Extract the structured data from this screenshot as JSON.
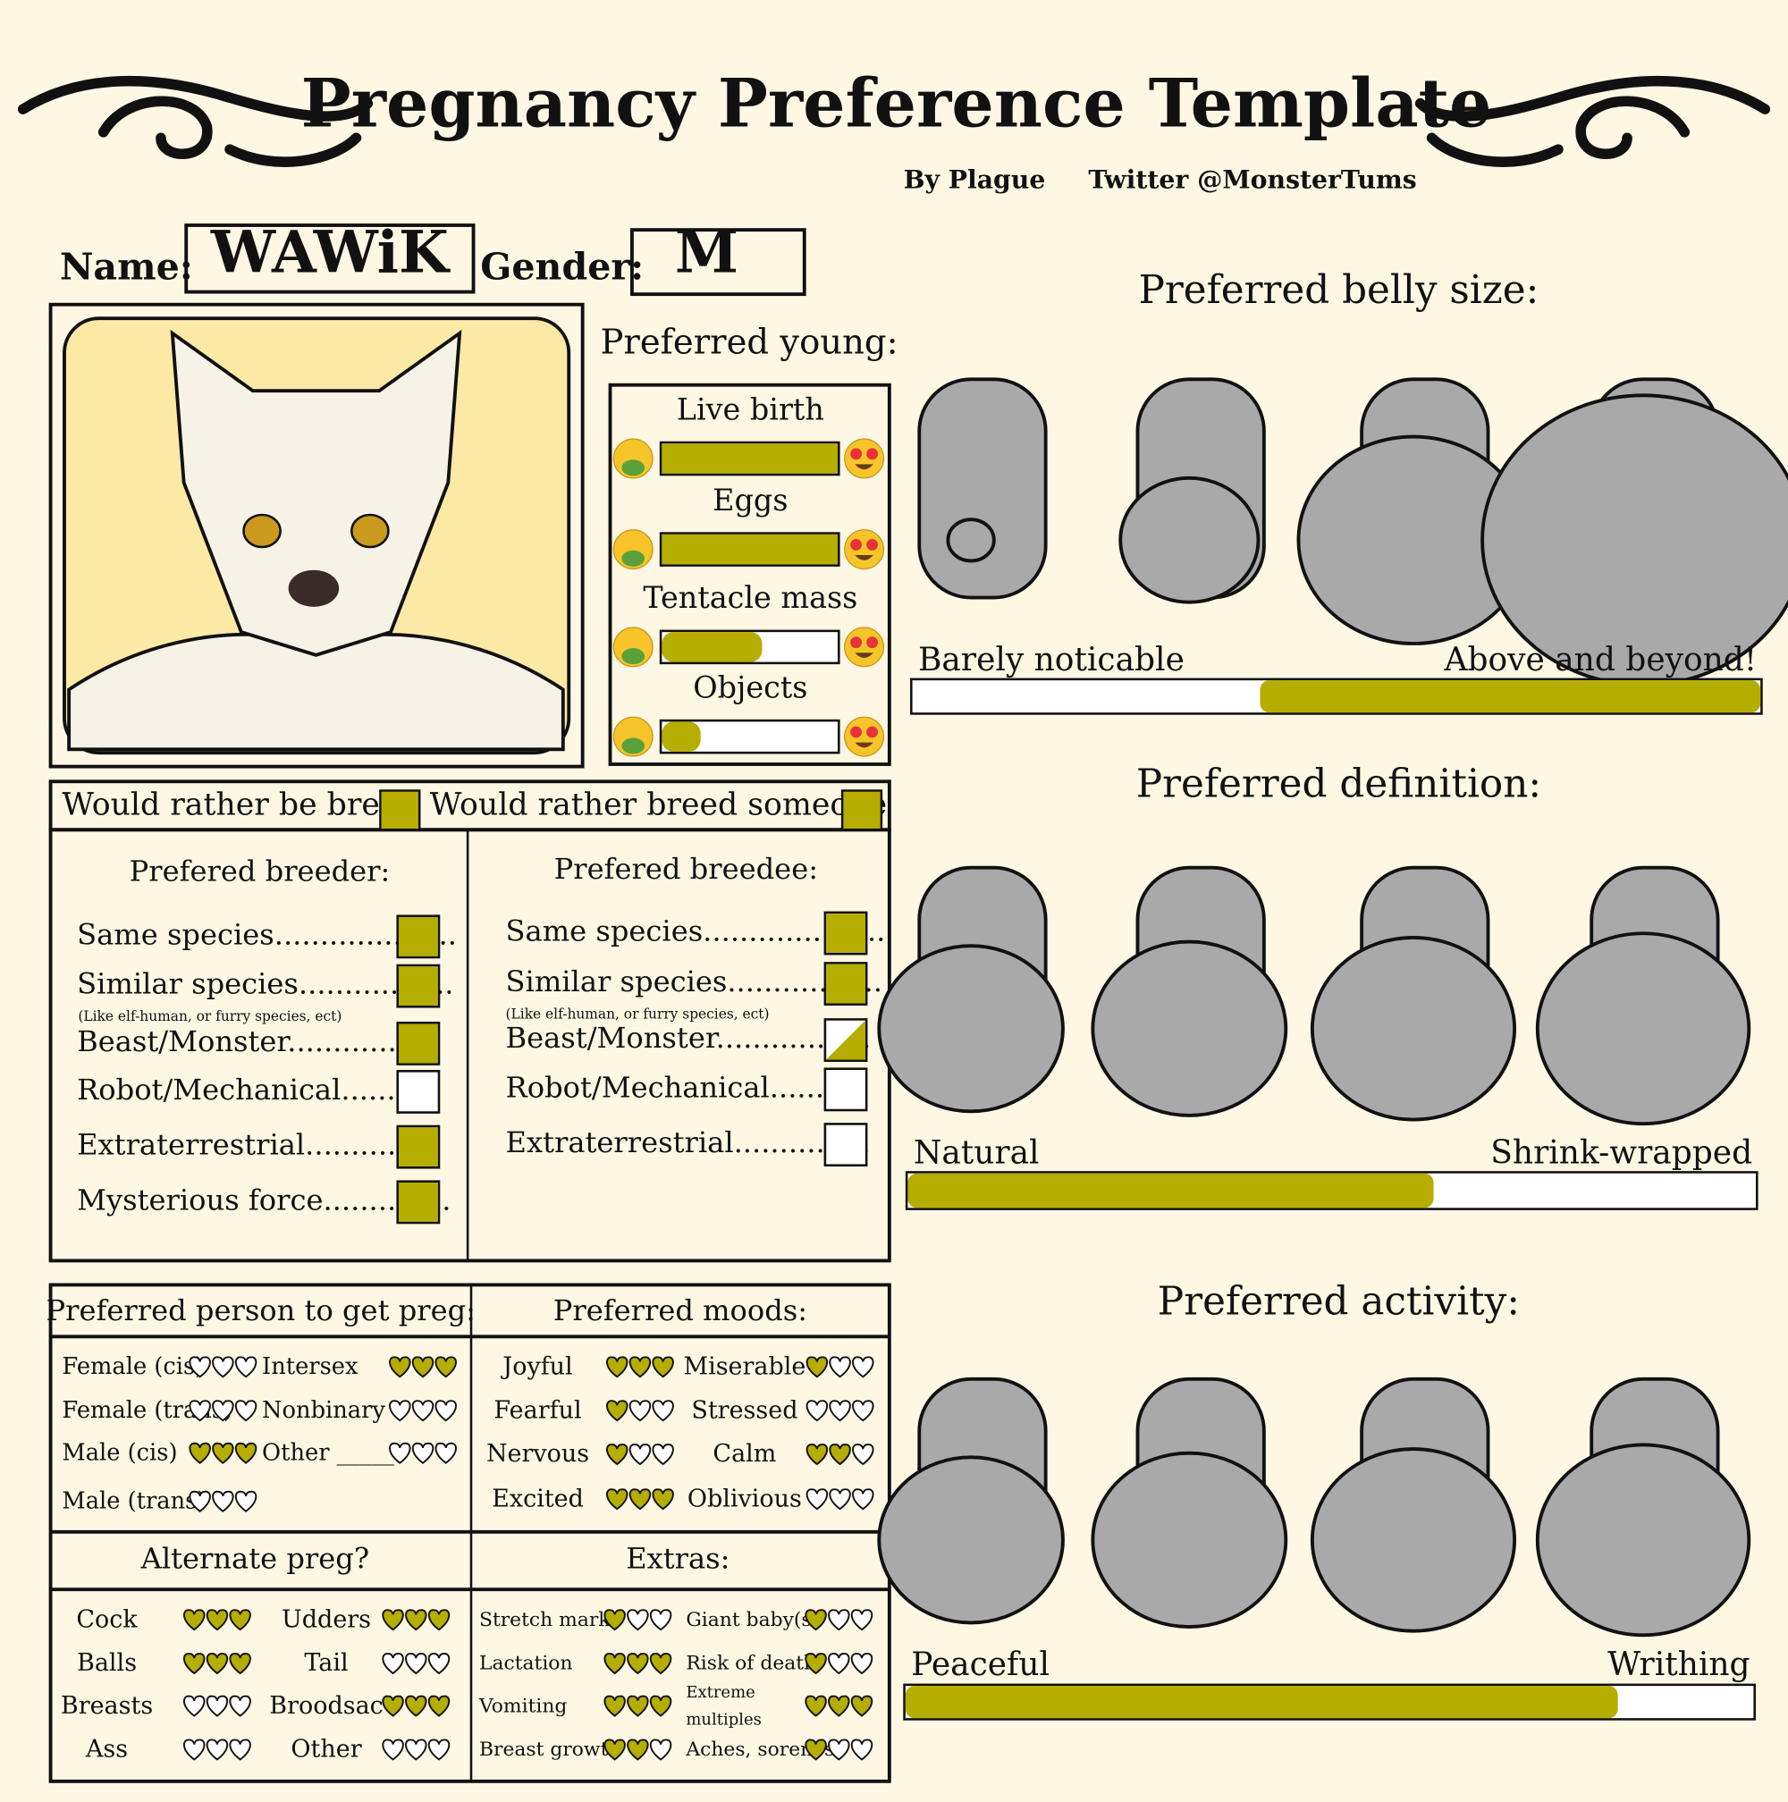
{
  "header": {
    "title": "Pregnancy Preference Template",
    "author": "By Plague",
    "twitter": "Twitter @MonsterTums"
  },
  "identity": {
    "name_label": "Name:",
    "name": "WAWiK",
    "gender_label": "Gender:",
    "gender": "M"
  },
  "young": {
    "title": "Preferred young:",
    "items": [
      {
        "label": "Live birth",
        "fill": 1.0
      },
      {
        "label": "Eggs",
        "fill": 1.0
      },
      {
        "label": "Tentacle mass",
        "fill": 0.57
      },
      {
        "label": "Objects",
        "fill": 0.22
      }
    ]
  },
  "role": [
    {
      "label": "Would rather be bred",
      "checked": 1
    },
    {
      "label": "Would rather breed someone",
      "checked": 1
    }
  ],
  "breeder": {
    "title": "Prefered breeder:",
    "note": "(Like elf-human, or furry species, ect)",
    "items": [
      {
        "label": "Same species....................",
        "checked": 1
      },
      {
        "label": "Similar species.................",
        "checked": 1
      },
      {
        "label": "Beast/Monster.................",
        "checked": 1
      },
      {
        "label": "Robot/Mechanical..........",
        "checked": 0
      },
      {
        "label": "Extraterrestrial...............",
        "checked": 1
      },
      {
        "label": "Mysterious force..............",
        "checked": 1
      }
    ]
  },
  "breedee": {
    "title": "Prefered breedee:",
    "note": "(Like elf-human, or furry species, ect)",
    "items": [
      {
        "label": "Same species....................",
        "checked": 1
      },
      {
        "label": "Similar species.................",
        "checked": 1
      },
      {
        "label": "Beast/Monster.................",
        "checked": 0.5
      },
      {
        "label": "Robot/Mechanical..........",
        "checked": 0
      },
      {
        "label": "Extraterrestrial...............",
        "checked": 0
      }
    ]
  },
  "person": {
    "title": "Preferred person to get preg:",
    "items": [
      {
        "label": "Female (cis)",
        "hearts": 0
      },
      {
        "label": "Intersex",
        "hearts": 3
      },
      {
        "label": "Female (trans)",
        "hearts": 0
      },
      {
        "label": "Nonbinary",
        "hearts": 0
      },
      {
        "label": "Male (cis)",
        "hearts": 3
      },
      {
        "label": "Other _____",
        "hearts": 0
      },
      {
        "label": "Male (trans)",
        "hearts": 0
      }
    ]
  },
  "moods": {
    "title": "Preferred moods:",
    "items": [
      {
        "label": "Joyful",
        "hearts": 3
      },
      {
        "label": "Miserable",
        "hearts": 1
      },
      {
        "label": "Fearful",
        "hearts": 1
      },
      {
        "label": "Stressed",
        "hearts": 0
      },
      {
        "label": "Nervous",
        "hearts": 1
      },
      {
        "label": "Calm",
        "hearts": 2
      },
      {
        "label": "Excited",
        "hearts": 3
      },
      {
        "label": "Oblivious",
        "hearts": 0
      }
    ]
  },
  "alternate": {
    "title": "Alternate preg?",
    "items": [
      {
        "label": "Cock",
        "hearts": 3
      },
      {
        "label": "Udders",
        "hearts": 3
      },
      {
        "label": "Balls",
        "hearts": 3
      },
      {
        "label": "Tail",
        "hearts": 0
      },
      {
        "label": "Breasts",
        "hearts": 0
      },
      {
        "label": "Broodsac",
        "hearts": 3
      },
      {
        "label": "Ass",
        "hearts": 0
      },
      {
        "label": "Other",
        "hearts": 0
      }
    ]
  },
  "extras": {
    "title": "Extras:",
    "items": [
      {
        "label": "Stretch marks",
        "hearts": 1
      },
      {
        "label": "Giant baby(s)",
        "hearts": 1
      },
      {
        "label": "Lactation",
        "hearts": 3
      },
      {
        "label": "Risk of death",
        "hearts": 1
      },
      {
        "label": "Vomiting",
        "hearts": 3
      },
      {
        "label": "Extreme multiples",
        "hearts": 3
      },
      {
        "label": "Breast growth",
        "hearts": 2
      },
      {
        "label": "Aches, soreness",
        "hearts": 1
      }
    ]
  },
  "scales": [
    {
      "title": "Preferred belly size:",
      "low": "Barely noticable",
      "high": "Above and beyond!",
      "fill": [
        0.41,
        1.0
      ]
    },
    {
      "title": "Preferred definition:",
      "low": "Natural",
      "high": "Shrink-wrapped",
      "fill": [
        0,
        0.62
      ]
    },
    {
      "title": "Preferred activity:",
      "low": "Peaceful",
      "high": "Writhing",
      "fill": [
        0,
        0.84
      ]
    }
  ]
}
